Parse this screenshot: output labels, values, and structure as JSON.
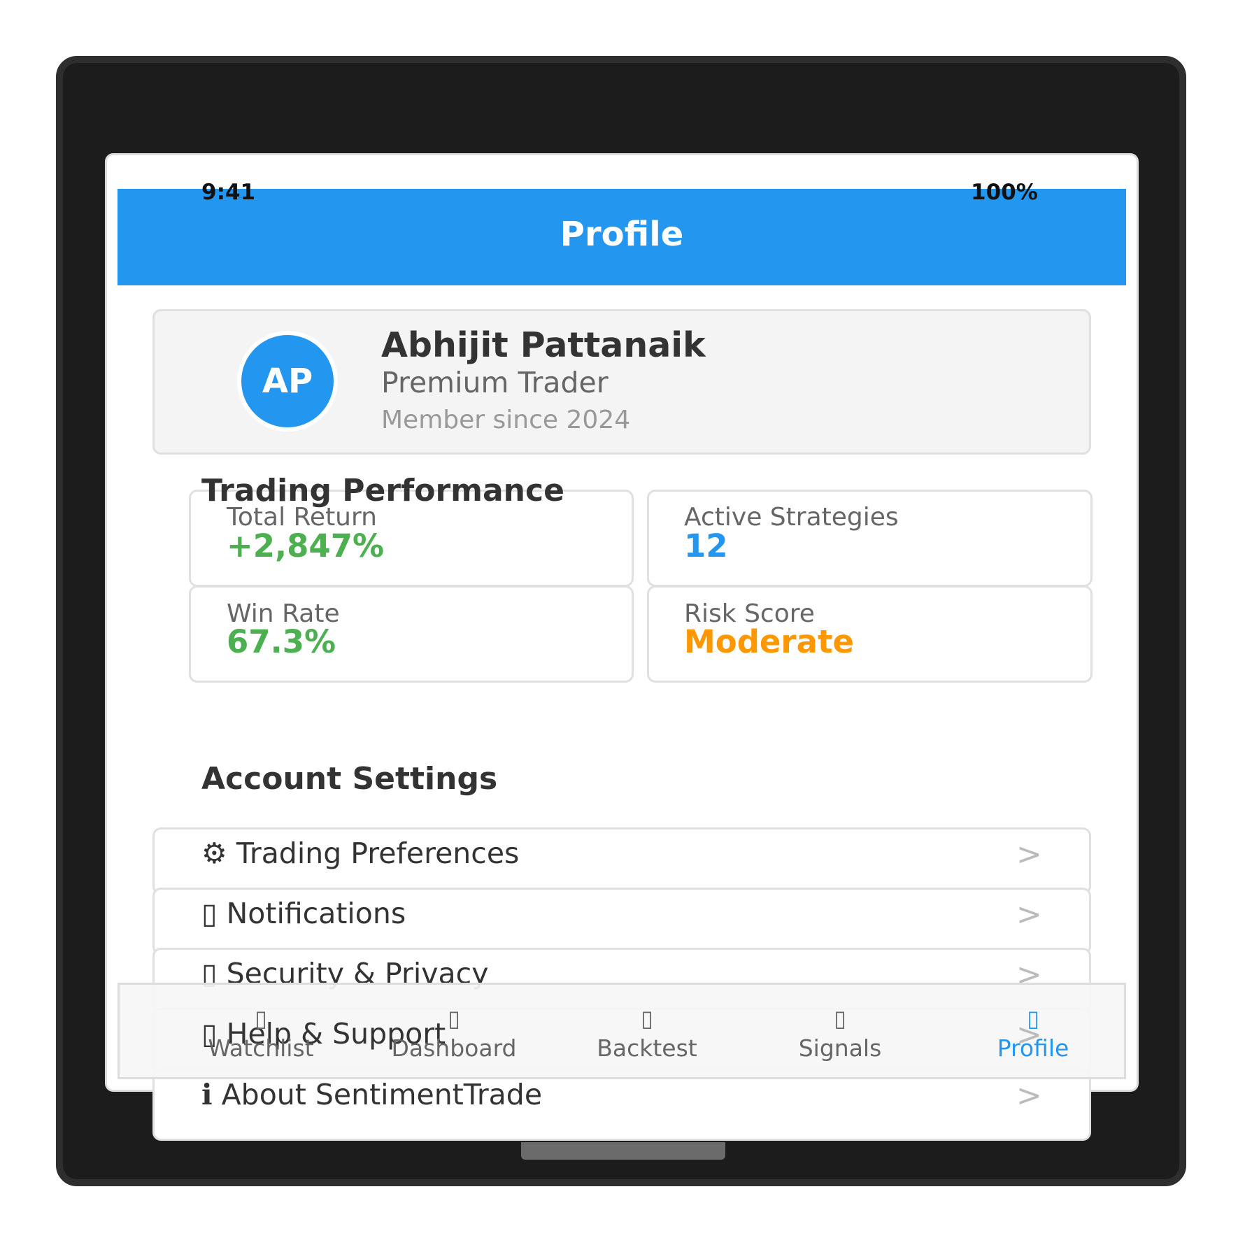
{
  "status_bar": {
    "time": "9:41",
    "battery": "100%"
  },
  "header": {
    "title": "Profile"
  },
  "colors": {
    "primary": "#2397f0",
    "positive": "#4caf50",
    "warning": "#ff9800",
    "text": "#333333",
    "muted": "#666666"
  },
  "profile": {
    "initials": "AP",
    "name": "Abhijit Pattanaik",
    "tier": "Premium Trader",
    "member_since": "Member since 2024"
  },
  "performance": {
    "title": "Trading Performance",
    "stats": [
      {
        "label": "Total Return",
        "value": "+2,847%"
      },
      {
        "label": "Active Strategies",
        "value": "12"
      },
      {
        "label": "Win Rate",
        "value": "67.3%"
      },
      {
        "label": "Risk Score",
        "value": "Moderate"
      }
    ]
  },
  "settings": {
    "title": "Account Settings",
    "items": [
      {
        "icon": "gear-icon",
        "glyph": "⚙",
        "label": "Trading Preferences",
        "chevron": ">"
      },
      {
        "icon": "bell-icon",
        "glyph": "▯",
        "label": "Notifications",
        "chevron": ">"
      },
      {
        "icon": "lock-icon",
        "glyph": "▯",
        "label": "Security & Privacy",
        "chevron": ">"
      },
      {
        "icon": "help-icon",
        "glyph": "▯",
        "label": "Help & Support",
        "chevron": ">"
      },
      {
        "icon": "info-icon",
        "glyph": "ℹ",
        "label": "About SentimentTrade",
        "chevron": ">"
      }
    ]
  },
  "bottom_nav": {
    "active": "Profile",
    "items": [
      {
        "icon": "watchlist-icon",
        "glyph": "▯",
        "label": "Watchlist"
      },
      {
        "icon": "dashboard-icon",
        "glyph": "▯",
        "label": "Dashboard"
      },
      {
        "icon": "backtest-icon",
        "glyph": "▯",
        "label": "Backtest"
      },
      {
        "icon": "signals-icon",
        "glyph": "▯",
        "label": "Signals"
      },
      {
        "icon": "profile-icon",
        "glyph": "▯",
        "label": "Profile"
      }
    ]
  }
}
